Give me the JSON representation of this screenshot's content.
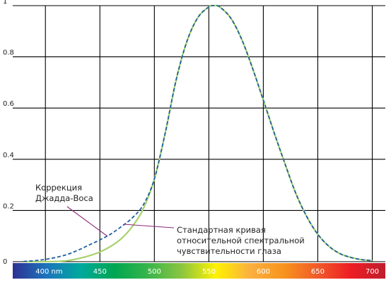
{
  "chart_data": {
    "type": "line",
    "title": "",
    "xlabel": "",
    "ylabel": "",
    "xlim": [
      370,
      712
    ],
    "ylim": [
      0,
      1
    ],
    "grid": true,
    "x_ticks": [
      {
        "value": 400,
        "label": "400 nm"
      },
      {
        "value": 450,
        "label": "450"
      },
      {
        "value": 500,
        "label": "500"
      },
      {
        "value": 550,
        "label": "550"
      },
      {
        "value": 600,
        "label": "600"
      },
      {
        "value": 650,
        "label": "650"
      },
      {
        "value": 700,
        "label": "700"
      }
    ],
    "y_ticks": [
      {
        "value": 0,
        "label": "0"
      },
      {
        "value": 0.2,
        "label": "0.2"
      },
      {
        "value": 0.4,
        "label": "0.4"
      },
      {
        "value": 0.6,
        "label": "0.6"
      },
      {
        "value": 0.8,
        "label": "0.8"
      },
      {
        "value": 1,
        "label": "1"
      }
    ],
    "x": [
      380,
      390,
      400,
      410,
      420,
      430,
      440,
      450,
      460,
      470,
      480,
      490,
      500,
      510,
      520,
      530,
      540,
      550,
      555,
      560,
      570,
      580,
      590,
      600,
      610,
      620,
      630,
      640,
      650,
      660,
      670,
      680,
      690,
      700
    ],
    "series": [
      {
        "key": "standard",
        "color": "#a8d26c",
        "dash": "solid",
        "values": [
          0,
          0,
          0,
          0.001,
          0.004,
          0.012,
          0.023,
          0.038,
          0.06,
          0.091,
          0.139,
          0.208,
          0.323,
          0.503,
          0.71,
          0.862,
          0.954,
          0.995,
          1.0,
          0.995,
          0.952,
          0.87,
          0.757,
          0.631,
          0.503,
          0.381,
          0.265,
          0.175,
          0.107,
          0.061,
          0.032,
          0.017,
          0.008,
          0.004
        ]
      },
      {
        "key": "judd-vos",
        "color": "#1f5fa0",
        "dash": "dashed",
        "values": [
          0.001,
          0.004,
          0.009,
          0.017,
          0.028,
          0.045,
          0.065,
          0.085,
          0.108,
          0.138,
          0.172,
          0.223,
          0.323,
          0.503,
          0.71,
          0.862,
          0.954,
          0.995,
          1.0,
          0.995,
          0.952,
          0.87,
          0.757,
          0.631,
          0.503,
          0.381,
          0.265,
          0.175,
          0.107,
          0.061,
          0.032,
          0.017,
          0.008,
          0.004
        ]
      }
    ],
    "annotations": [
      {
        "key": "judd-vos",
        "lines": [
          "Коррекция",
          "Джадда-Воса"
        ],
        "points_to": {
          "x": 462,
          "y": 0.12
        }
      },
      {
        "key": "standard",
        "lines": [
          "Стандартная кривая",
          "относительной спектральной",
          "чувствительности глаза"
        ],
        "points_to": {
          "x": 472,
          "y": 0.16
        }
      }
    ],
    "spectrum_bar": {
      "colors": [
        "#2e3192",
        "#1c75bc",
        "#00a99d",
        "#00a651",
        "#39b54a",
        "#8dc63f",
        "#fff200",
        "#fbb040",
        "#f7941d",
        "#f15a29",
        "#ed1c24",
        "#be1e2d"
      ]
    }
  },
  "colors": {
    "grid": "#000000",
    "axis_text": "#231f20",
    "leader_line": "#8b2a7a"
  }
}
